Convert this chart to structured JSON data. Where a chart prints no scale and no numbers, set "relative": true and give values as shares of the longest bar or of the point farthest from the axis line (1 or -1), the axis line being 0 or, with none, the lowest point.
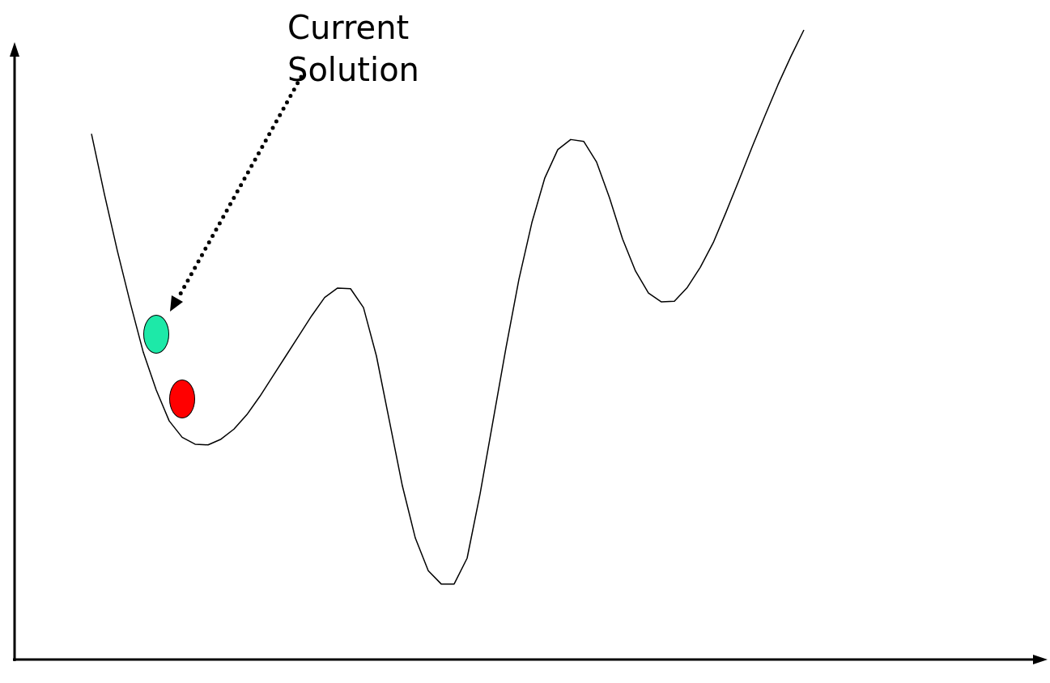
{
  "chart_data": {
    "type": "line",
    "relative": true,
    "annotations": [
      "Current Solution"
    ],
    "categories": [
      null,
      null,
      null,
      null,
      null,
      null,
      null,
      null,
      null,
      null,
      null,
      null,
      null,
      null,
      null,
      null,
      null,
      null,
      null,
      null,
      null,
      null,
      null,
      null,
      null,
      null,
      null,
      null,
      null,
      null,
      null,
      null,
      null,
      null,
      null,
      null,
      null,
      null,
      null,
      null,
      null,
      null,
      null,
      null,
      null,
      null,
      null,
      null,
      null,
      null,
      null,
      null,
      null,
      null,
      null,
      null
    ],
    "series": [
      {
        "color": "#000000",
        "values": [
          0.835,
          0.739,
          0.649,
          0.566,
          0.488,
          0.428,
          0.379,
          0.353,
          0.342,
          0.341,
          0.35,
          0.366,
          0.389,
          0.418,
          0.45,
          0.482,
          0.514,
          0.546,
          0.575,
          0.59,
          0.589,
          0.559,
          0.482,
          0.379,
          0.276,
          0.193,
          0.141,
          0.12,
          0.12,
          0.161,
          0.263,
          0.379,
          0.495,
          0.604,
          0.694,
          0.765,
          0.81,
          0.826,
          0.823,
          0.79,
          0.733,
          0.668,
          0.617,
          0.582,
          0.568,
          0.569,
          0.591,
          0.623,
          0.662,
          0.711,
          0.762,
          0.814,
          0.864,
          0.913,
          0.958,
          1
        ]
      }
    ]
  }
}
